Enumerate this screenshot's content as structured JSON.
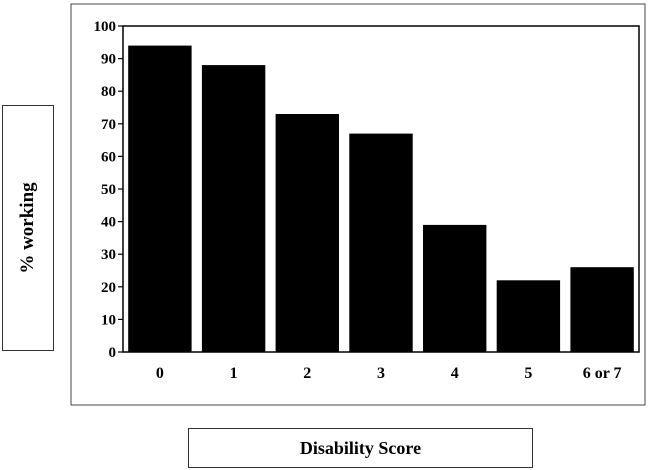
{
  "chart_data": {
    "type": "bar",
    "categories": [
      "0",
      "1",
      "2",
      "3",
      "4",
      "5",
      "6 or 7"
    ],
    "values": [
      94,
      88,
      73,
      67,
      39,
      22,
      26
    ],
    "xlabel": "Disability Score",
    "ylabel": "% working",
    "ylim": [
      0,
      100
    ],
    "yticks": [
      "0",
      "10",
      "20",
      "30",
      "40",
      "50",
      "60",
      "70",
      "80",
      "90",
      "100"
    ],
    "grid": false,
    "bar_color": "#000000"
  }
}
